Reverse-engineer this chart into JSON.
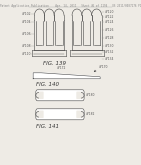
{
  "bg_color": "#eeebe5",
  "header_color": "#888888",
  "line_color": "#444444",
  "line_width": 0.4,
  "fig139_label": "FIG. 139",
  "fig140_label": "FIG. 140",
  "fig141_label": "FIG. 141",
  "label_fontsize": 4.0,
  "tiny_fontsize": 2.2,
  "header_fontsize": 2.0
}
